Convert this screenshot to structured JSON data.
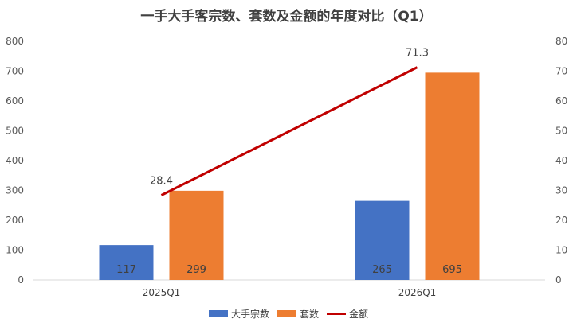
{
  "chart_data": {
    "type": "bar",
    "title": "一手大手客宗数、套数及金额的年度对比（Q1）",
    "categories": [
      "2025Q1",
      "2026Q1"
    ],
    "series": [
      {
        "name": "大手宗数",
        "type": "bar",
        "axis": "left",
        "values": [
          117,
          265
        ],
        "color": "#4472C4"
      },
      {
        "name": "套数",
        "type": "bar",
        "axis": "left",
        "values": [
          299,
          695
        ],
        "color": "#ED7D31"
      },
      {
        "name": "金额",
        "type": "line",
        "axis": "right",
        "values": [
          28.4,
          71.3
        ],
        "color": "#C00000"
      }
    ],
    "y_left": {
      "min": 0,
      "max": 800,
      "step": 100
    },
    "y_right": {
      "min": 0,
      "max": 80,
      "step": 10
    },
    "legend": "bottom",
    "grid": false
  }
}
